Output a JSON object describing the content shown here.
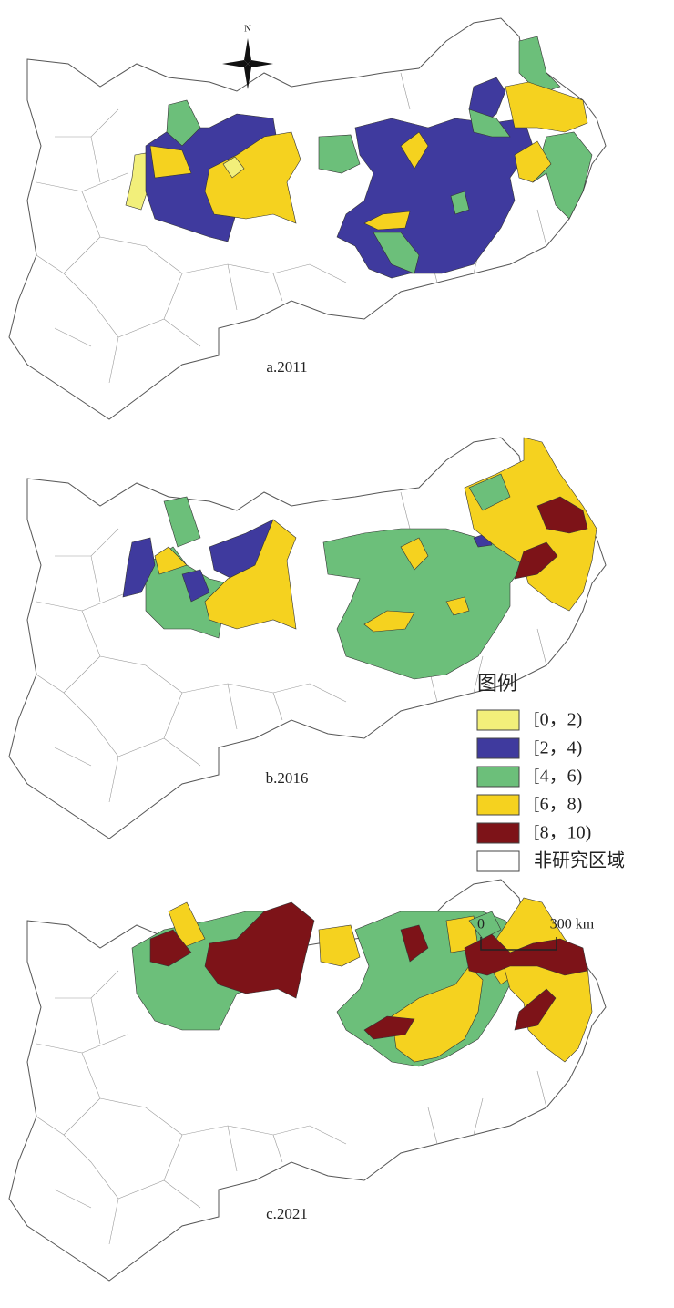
{
  "compass": "N",
  "maps": [
    {
      "label": "a.2011"
    },
    {
      "label": "b.2016"
    },
    {
      "label": "c.2021"
    }
  ],
  "legend": {
    "title": "图例",
    "items": [
      {
        "label": "[0，2)",
        "color": "#f2ef7a"
      },
      {
        "label": "[2，4)",
        "color": "#3f3a9e"
      },
      {
        "label": "[4，6)",
        "color": "#6cbf7a"
      },
      {
        "label": "[6，8)",
        "color": "#f5d21f"
      },
      {
        "label": "[8，10)",
        "color": "#7d1318"
      },
      {
        "label": "非研究区域",
        "color": "#ffffff"
      }
    ]
  },
  "scale": {
    "start": "0",
    "end": "300 km"
  }
}
